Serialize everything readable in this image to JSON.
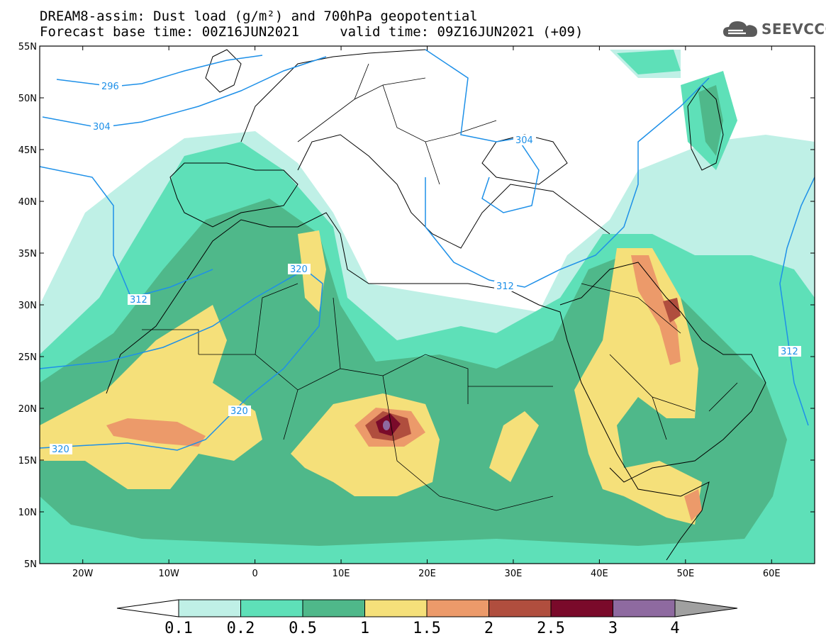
{
  "header": {
    "title_line1": "DREAM8-assim: Dust load (g/m²) and 700hPa geopotential",
    "title_line2": "Forecast base time: 00Z16JUN2021     valid time: 09Z16JUN2021 (+09)",
    "logo_text": "SEEVCCC"
  },
  "map": {
    "lon_range": [
      -25,
      65
    ],
    "lat_range": [
      5,
      55
    ],
    "lat_ticks": [
      "55N",
      "50N",
      "45N",
      "40N",
      "35N",
      "30N",
      "25N",
      "20N",
      "15N",
      "10N",
      "5N"
    ],
    "lon_ticks": [
      "20W",
      "10W",
      "0",
      "10E",
      "20E",
      "30E",
      "40E",
      "50E",
      "60E"
    ],
    "contour_labels": [
      "296",
      "304",
      "304",
      "312",
      "312",
      "320",
      "320",
      "320",
      "312"
    ],
    "colors": {
      "contour": "#1e90e8",
      "border": "#000000"
    }
  },
  "colorbar": {
    "labels": [
      "0.1",
      "0.2",
      "0.5",
      "1",
      "1.5",
      "2",
      "2.5",
      "3",
      "4"
    ],
    "colors": [
      "#bff0e6",
      "#5ee0b8",
      "#4fb88a",
      "#f5e07a",
      "#ec9a6a",
      "#b04e3e",
      "#7a0a2a",
      "#8e6aa0"
    ],
    "under_color": "#ffffff",
    "over_color": "#a0a0a0"
  }
}
